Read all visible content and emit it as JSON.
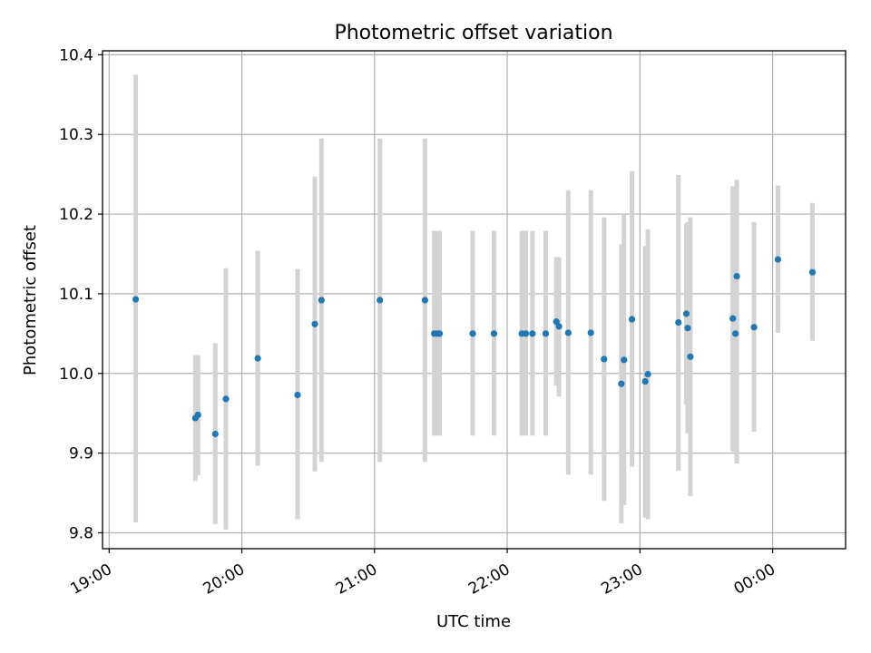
{
  "chart_data": {
    "type": "scatter",
    "title": "Photometric offset variation",
    "xlabel": "UTC time",
    "ylabel": "Photometric offset",
    "x_unit": "UTC time (hours)",
    "xlim": [
      18.95,
      24.55
    ],
    "ylim": [
      9.78,
      10.405
    ],
    "grid": true,
    "xticks": [
      {
        "value": 19,
        "label": "19:00"
      },
      {
        "value": 20,
        "label": "20:00"
      },
      {
        "value": 21,
        "label": "21:00"
      },
      {
        "value": 22,
        "label": "22:00"
      },
      {
        "value": 23,
        "label": "23:00"
      },
      {
        "value": 24,
        "label": "00:00"
      }
    ],
    "yticks": [
      {
        "value": 9.8,
        "label": "9.8"
      },
      {
        "value": 9.9,
        "label": "9.9"
      },
      {
        "value": 10.0,
        "label": "10.0"
      },
      {
        "value": 10.1,
        "label": "10.1"
      },
      {
        "value": 10.2,
        "label": "10.2"
      },
      {
        "value": 10.3,
        "label": "10.3"
      },
      {
        "value": 10.4,
        "label": "10.4"
      }
    ],
    "colors": {
      "point": "#1f77b4",
      "errorbar": "#d3d3d3",
      "grid": "#b0b0b0"
    },
    "series": [
      {
        "points": [
          {
            "x": 19.2,
            "y": 10.093,
            "lo": 9.813,
            "hi": 10.375
          },
          {
            "x": 19.65,
            "y": 9.944,
            "lo": 9.865,
            "hi": 10.023
          },
          {
            "x": 19.67,
            "y": 9.948,
            "lo": 9.872,
            "hi": 10.023
          },
          {
            "x": 19.8,
            "y": 9.924,
            "lo": 9.811,
            "hi": 10.038
          },
          {
            "x": 19.88,
            "y": 9.968,
            "lo": 9.804,
            "hi": 10.132
          },
          {
            "x": 20.12,
            "y": 10.019,
            "lo": 9.884,
            "hi": 10.154
          },
          {
            "x": 20.42,
            "y": 9.973,
            "lo": 9.817,
            "hi": 10.131
          },
          {
            "x": 20.55,
            "y": 10.062,
            "lo": 9.877,
            "hi": 10.247
          },
          {
            "x": 20.6,
            "y": 10.092,
            "lo": 9.889,
            "hi": 10.295
          },
          {
            "x": 21.04,
            "y": 10.092,
            "lo": 9.889,
            "hi": 10.295
          },
          {
            "x": 21.38,
            "y": 10.092,
            "lo": 9.889,
            "hi": 10.295
          },
          {
            "x": 21.45,
            "y": 10.05,
            "lo": 9.922,
            "hi": 10.179
          },
          {
            "x": 21.47,
            "y": 10.05,
            "lo": 9.922,
            "hi": 10.179
          },
          {
            "x": 21.49,
            "y": 10.05,
            "lo": 9.922,
            "hi": 10.179
          },
          {
            "x": 21.74,
            "y": 10.05,
            "lo": 9.922,
            "hi": 10.179
          },
          {
            "x": 21.9,
            "y": 10.05,
            "lo": 9.922,
            "hi": 10.179
          },
          {
            "x": 22.11,
            "y": 10.05,
            "lo": 9.922,
            "hi": 10.179
          },
          {
            "x": 22.14,
            "y": 10.05,
            "lo": 9.922,
            "hi": 10.179
          },
          {
            "x": 22.19,
            "y": 10.05,
            "lo": 9.922,
            "hi": 10.179
          },
          {
            "x": 22.29,
            "y": 10.05,
            "lo": 9.922,
            "hi": 10.179
          },
          {
            "x": 22.37,
            "y": 10.065,
            "lo": 9.985,
            "hi": 10.146
          },
          {
            "x": 22.39,
            "y": 10.059,
            "lo": 9.971,
            "hi": 10.146
          },
          {
            "x": 22.46,
            "y": 10.051,
            "lo": 9.873,
            "hi": 10.23
          },
          {
            "x": 22.63,
            "y": 10.051,
            "lo": 9.873,
            "hi": 10.23
          },
          {
            "x": 22.73,
            "y": 10.018,
            "lo": 9.84,
            "hi": 10.196
          },
          {
            "x": 22.86,
            "y": 9.987,
            "lo": 9.812,
            "hi": 10.162
          },
          {
            "x": 22.88,
            "y": 10.017,
            "lo": 9.835,
            "hi": 10.199
          },
          {
            "x": 22.94,
            "y": 10.068,
            "lo": 9.883,
            "hi": 10.254
          },
          {
            "x": 23.04,
            "y": 9.99,
            "lo": 9.819,
            "hi": 10.16
          },
          {
            "x": 23.06,
            "y": 9.999,
            "lo": 9.817,
            "hi": 10.181
          },
          {
            "x": 23.29,
            "y": 10.064,
            "lo": 9.878,
            "hi": 10.249
          },
          {
            "x": 23.35,
            "y": 10.075,
            "lo": 9.961,
            "hi": 10.188
          },
          {
            "x": 23.36,
            "y": 10.057,
            "lo": 9.925,
            "hi": 10.19
          },
          {
            "x": 23.38,
            "y": 10.021,
            "lo": 9.846,
            "hi": 10.196
          },
          {
            "x": 23.7,
            "y": 10.069,
            "lo": 9.902,
            "hi": 10.235
          },
          {
            "x": 23.72,
            "y": 10.05,
            "lo": 9.906,
            "hi": 10.194
          },
          {
            "x": 23.73,
            "y": 10.122,
            "lo": 9.887,
            "hi": 10.243
          },
          {
            "x": 23.86,
            "y": 10.058,
            "lo": 9.927,
            "hi": 10.19
          },
          {
            "x": 24.04,
            "y": 10.143,
            "lo": 10.051,
            "hi": 10.236
          },
          {
            "x": 24.3,
            "y": 10.127,
            "lo": 10.041,
            "hi": 10.214
          }
        ]
      }
    ]
  }
}
